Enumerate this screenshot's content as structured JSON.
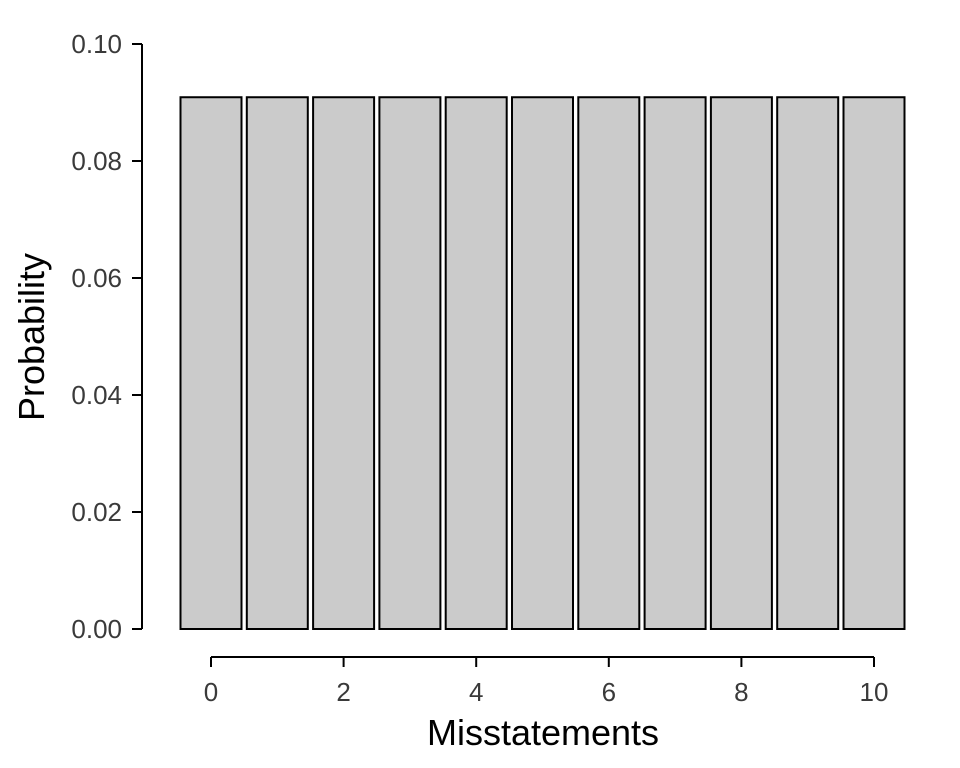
{
  "chart_data": {
    "type": "bar",
    "title": "",
    "xlabel": "Misstatements",
    "ylabel": "Probability",
    "categories": [
      0,
      1,
      2,
      3,
      4,
      5,
      6,
      7,
      8,
      9,
      10
    ],
    "values": [
      0.0909,
      0.0909,
      0.0909,
      0.0909,
      0.0909,
      0.0909,
      0.0909,
      0.0909,
      0.0909,
      0.0909,
      0.0909
    ],
    "xlim": [
      0,
      10
    ],
    "ylim": [
      0,
      0.1
    ],
    "x_ticks": [
      0,
      2,
      4,
      6,
      8,
      10
    ],
    "x_tick_labels": [
      "0",
      "2",
      "4",
      "6",
      "8",
      "10"
    ],
    "y_ticks": [
      0,
      0.02,
      0.04,
      0.06,
      0.08,
      0.1
    ],
    "y_tick_labels": [
      "0.00",
      "0.02",
      "0.04",
      "0.06",
      "0.08",
      "0.10"
    ],
    "grid": false,
    "legend": "none",
    "bar_fill_color": "#cbcbcb",
    "bar_edge_color": "#000000",
    "axis_color": "#000000",
    "tick_label_color": "#3a3a3a"
  }
}
